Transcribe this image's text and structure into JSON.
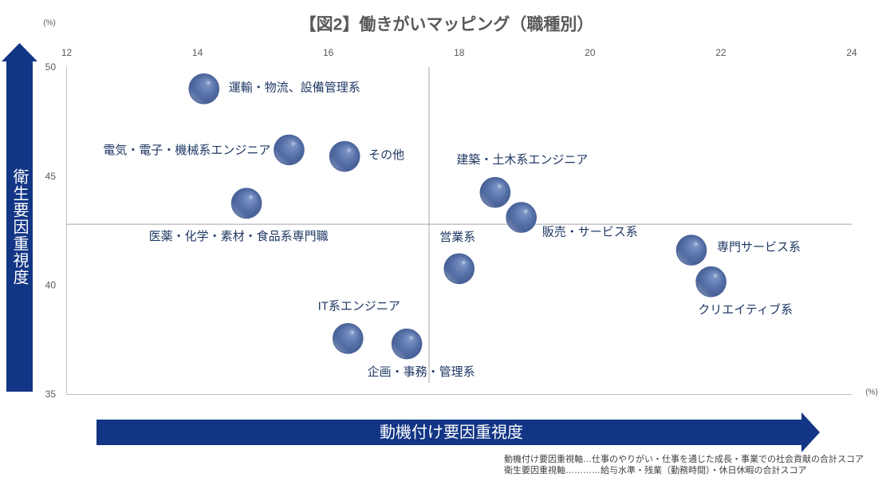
{
  "chart_data": {
    "type": "scatter",
    "title": "【図2】働きがいマッピング（職種別）",
    "xlabel": "動機付け要因重視度",
    "ylabel": "衛生要因重視度",
    "x_unit": "(%)",
    "y_unit": "(%)",
    "xlim": [
      12,
      24
    ],
    "ylim": [
      35,
      50
    ],
    "x_ticks": [
      12,
      14,
      16,
      18,
      20,
      22,
      24
    ],
    "y_ticks": [
      50,
      45,
      40,
      35
    ],
    "x_tick_position": "top",
    "grid": false,
    "reference_lines": {
      "x": 17.54,
      "y": 42.79
    },
    "points": [
      {
        "label": "運輸・物流、設備管理系",
        "x": 14.1,
        "y": 49.0
      },
      {
        "label": "電気・電子・機械系エンジニア",
        "x": 15.4,
        "y": 46.2
      },
      {
        "label": "その他",
        "x": 16.25,
        "y": 45.9
      },
      {
        "label": "医薬・化学・素材・食品系専門職",
        "x": 14.75,
        "y": 43.75
      },
      {
        "label": "建築・土木系エンジニア",
        "x": 18.55,
        "y": 44.25
      },
      {
        "label": "販売・サービス系",
        "x": 18.95,
        "y": 43.1
      },
      {
        "label": "営業系",
        "x": 18.0,
        "y": 40.75
      },
      {
        "label": "専門サービス系",
        "x": 21.55,
        "y": 41.6
      },
      {
        "label": "クリエイティブ系",
        "x": 21.85,
        "y": 40.15
      },
      {
        "label": "IT系エンジニア",
        "x": 16.3,
        "y": 37.55
      },
      {
        "label": "企画・事務・管理系",
        "x": 17.2,
        "y": 37.3
      }
    ]
  },
  "footnotes": [
    "動機付け要因重視軸…仕事のやりがい・仕事を通じた成長・事業での社会貢献の合計スコア",
    "衛生要因重視軸…………給与水準・残業（勤務時間）・休日休暇の合計スコア"
  ],
  "colors": {
    "arrow": "#123585",
    "bubble": "#5671a8",
    "label": "#1f3864",
    "tick": "#595959",
    "axis": "#bfbfbf",
    "reference_line": "#a6a6a6"
  }
}
